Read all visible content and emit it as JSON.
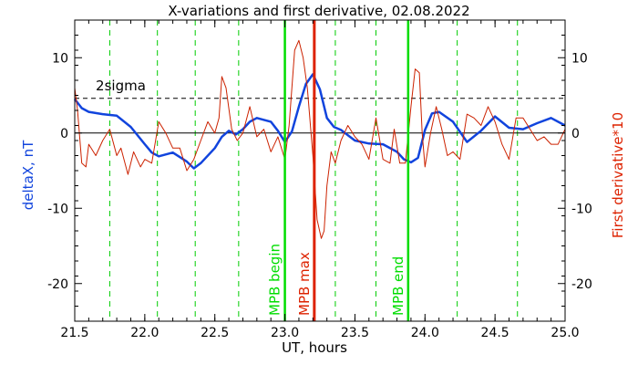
{
  "chart_data": {
    "type": "line",
    "title": "X-variations and first derivative, 02.08.2022",
    "xlabel": "UT, hours",
    "ylabel_left": "deltaX, nT",
    "ylabel_right": "First derivative*10",
    "xlim": [
      21.5,
      25.0
    ],
    "ylim": [
      -25,
      15
    ],
    "x_ticks": [
      21.5,
      22.0,
      22.5,
      23.0,
      23.5,
      24.0,
      24.5,
      25.0
    ],
    "x_tick_labels": [
      "21.5",
      "22.0",
      "22.5",
      "23.0",
      "23.5",
      "24.0",
      "24.5",
      "25.0"
    ],
    "y_ticks": [
      -20,
      -10,
      0,
      10
    ],
    "y_tick_labels": [
      "-20",
      "-10",
      "0",
      "10"
    ],
    "sigma_level": 4.6,
    "sigma_label": "2sigma",
    "vertical_markers": {
      "dashed_green": [
        21.75,
        22.09,
        22.36,
        22.67,
        23.36,
        23.65,
        24.23,
        24.66
      ],
      "mpb_begin": {
        "x": 23.0,
        "label": "MPB begin",
        "color": "#00dd00"
      },
      "mpb_max": {
        "x": 23.21,
        "label": "MPB max",
        "color": "#dd2200"
      },
      "mpb_end": {
        "x": 23.88,
        "label": "MPB end",
        "color": "#00dd00"
      }
    },
    "series": [
      {
        "color": "#1144dd",
        "x": [
          21.5,
          21.55,
          21.6,
          21.7,
          21.8,
          21.9,
          22.0,
          22.05,
          22.1,
          22.2,
          22.3,
          22.35,
          22.4,
          22.5,
          22.55,
          22.6,
          22.65,
          22.7,
          22.75,
          22.8,
          22.9,
          22.95,
          23.0,
          23.05,
          23.1,
          23.15,
          23.2,
          23.25,
          23.3,
          23.35,
          23.4,
          23.5,
          23.6,
          23.7,
          23.8,
          23.85,
          23.9,
          23.95,
          24.0,
          24.05,
          24.1,
          24.2,
          24.3,
          24.4,
          24.5,
          24.6,
          24.7,
          24.8,
          24.9,
          25.0
        ],
        "values": [
          4.5,
          3.3,
          2.8,
          2.5,
          2.3,
          0.8,
          -1.5,
          -2.6,
          -3.1,
          -2.6,
          -3.8,
          -4.7,
          -4.0,
          -2.0,
          -0.5,
          0.3,
          -0.2,
          0.5,
          1.5,
          2.0,
          1.5,
          0.3,
          -1.2,
          0.2,
          3.5,
          6.5,
          7.8,
          5.8,
          2.0,
          0.8,
          0.4,
          -1.0,
          -1.4,
          -1.5,
          -2.5,
          -3.5,
          -3.9,
          -3.3,
          0.4,
          2.6,
          2.8,
          1.5,
          -1.2,
          0.3,
          2.2,
          0.7,
          0.5,
          1.3,
          2.0,
          1.0
        ]
      },
      {
        "color": "#cc2200",
        "x": [
          21.5,
          21.52,
          21.55,
          21.58,
          21.6,
          21.65,
          21.7,
          21.75,
          21.8,
          21.83,
          21.88,
          21.92,
          21.97,
          22.0,
          22.05,
          22.1,
          22.15,
          22.2,
          22.25,
          22.3,
          22.35,
          22.4,
          22.45,
          22.5,
          22.53,
          22.55,
          22.58,
          22.62,
          22.66,
          22.7,
          22.75,
          22.8,
          22.85,
          22.9,
          22.95,
          23.0,
          23.03,
          23.07,
          23.1,
          23.13,
          23.16,
          23.2,
          23.23,
          23.26,
          23.28,
          23.3,
          23.33,
          23.36,
          23.4,
          23.45,
          23.5,
          23.55,
          23.6,
          23.65,
          23.7,
          23.75,
          23.78,
          23.82,
          23.86,
          23.9,
          23.93,
          23.96,
          23.98,
          24.0,
          24.04,
          24.08,
          24.12,
          24.16,
          24.2,
          24.25,
          24.3,
          24.35,
          24.4,
          24.45,
          24.5,
          24.55,
          24.6,
          24.65,
          24.7,
          24.75,
          24.8,
          24.85,
          24.9,
          24.95,
          25.0
        ],
        "values": [
          6.0,
          3.0,
          -4.0,
          -4.5,
          -1.5,
          -3.0,
          -1.0,
          0.5,
          -3.0,
          -2.0,
          -5.5,
          -2.5,
          -4.5,
          -3.5,
          -4.0,
          1.5,
          0.0,
          -2.0,
          -2.0,
          -5.0,
          -3.5,
          -1.0,
          1.5,
          0.0,
          2.0,
          7.5,
          6.0,
          0.5,
          -1.0,
          0.0,
          3.5,
          -0.5,
          0.5,
          -2.5,
          -0.5,
          -3.5,
          1.0,
          11.0,
          12.3,
          10.0,
          6.0,
          -3.0,
          -11.5,
          -14.0,
          -13.0,
          -7.0,
          -2.5,
          -4.0,
          -1.0,
          1.0,
          -0.5,
          -1.5,
          -3.5,
          2.0,
          -3.5,
          -4.0,
          0.5,
          -4.0,
          -4.0,
          3.5,
          8.5,
          8.0,
          0.0,
          -4.5,
          0.0,
          3.5,
          0.5,
          -3.0,
          -2.5,
          -3.5,
          2.5,
          2.0,
          1.0,
          3.5,
          1.5,
          -1.5,
          -3.5,
          2.0,
          2.0,
          0.5,
          -1.0,
          -0.5,
          -1.5,
          -1.5,
          0.5
        ]
      }
    ]
  }
}
